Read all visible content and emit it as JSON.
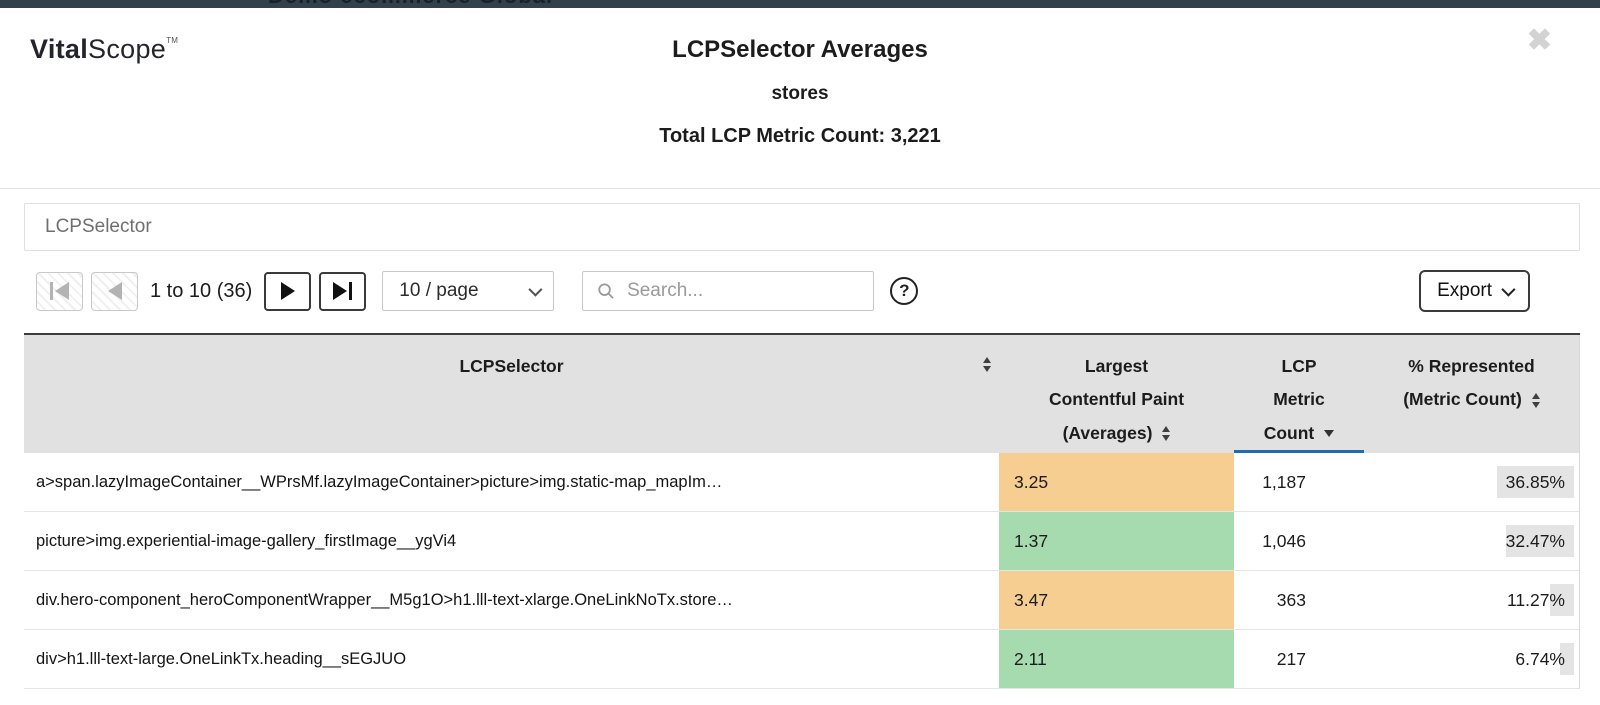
{
  "background_strip": {
    "text": "Demo ecommerce Global"
  },
  "brand": {
    "bold": "Vital",
    "light": "Scope",
    "tm": "TM"
  },
  "modal": {
    "title": "LCPSelector Averages",
    "subtitle": "stores",
    "total_line": "Total LCP Metric Count: 3,221"
  },
  "filter": {
    "label": "LCPSelector"
  },
  "pagination": {
    "range_text": "1 to 10 (36)",
    "page_size": "10 / page"
  },
  "search": {
    "placeholder": "Search..."
  },
  "help": {
    "glyph": "?"
  },
  "export": {
    "label": "Export"
  },
  "table": {
    "columns": [
      {
        "label": "LCPSelector"
      },
      {
        "lines": [
          "Largest",
          "Contentful Paint",
          "(Averages)"
        ]
      },
      {
        "lines": [
          "LCP",
          "Metric",
          "Count"
        ],
        "sorted": "desc"
      },
      {
        "lines": [
          "% Represented",
          "(Metric Count)"
        ]
      }
    ],
    "rows": [
      {
        "selector": "a>span.lazyImageContainer__WPrsMf.lazyImageContainer>picture>img.static-map_mapIm…",
        "lcp_avg": "3.25",
        "rating": "needs-improvement",
        "metric_count": "1,187",
        "percent": "36.85%",
        "percent_value": 36.85
      },
      {
        "selector": "picture>img.experiential-image-gallery_firstImage__ygVi4",
        "lcp_avg": "1.37",
        "rating": "good",
        "metric_count": "1,046",
        "percent": "32.47%",
        "percent_value": 32.47
      },
      {
        "selector": "div.hero-component_heroComponentWrapper__M5g1O>h1.lll-text-xlarge.OneLinkNoTx.store…",
        "lcp_avg": "3.47",
        "rating": "needs-improvement",
        "metric_count": "363",
        "percent": "11.27%",
        "percent_value": 11.27
      },
      {
        "selector": "div>h1.lll-text-large.OneLinkTx.heading__sEGJUO",
        "lcp_avg": "2.11",
        "rating": "good",
        "metric_count": "217",
        "percent": "6.74%",
        "percent_value": 6.74
      }
    ]
  },
  "colors": {
    "good": "#a6dbb0",
    "needs-improvement": "#f6ce92",
    "sorted_underline": "#1b6fb0",
    "percent_bar": "#e4e4e4"
  }
}
